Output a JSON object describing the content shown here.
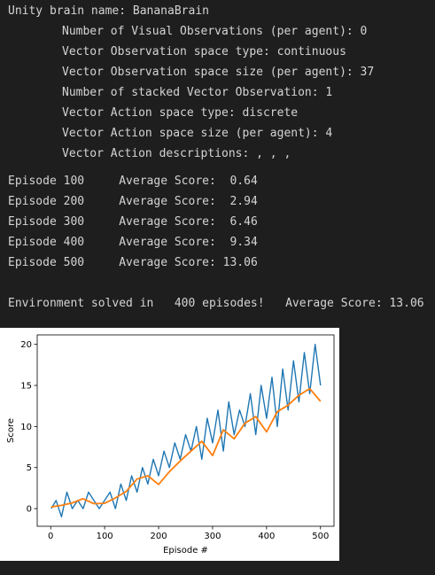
{
  "output": {
    "brain_lines": [
      "Unity brain name: BananaBrain",
      "Number of Visual Observations (per agent): 0",
      "Vector Observation space type: continuous",
      "Vector Observation space size (per agent): 37",
      "Number of stacked Vector Observation: 1",
      "Vector Action space type: discrete",
      "Vector Action space size (per agent): 4",
      "Vector Action descriptions: , , ,"
    ],
    "episode_lines": [
      "Episode 100\tAverage Score:  0.64",
      "Episode 200\tAverage Score:  2.94",
      "Episode 300\tAverage Score:  6.46",
      "Episode 400\tAverage Score:  9.34",
      "Episode 500\tAverage Score: 13.06"
    ],
    "solved_line": "Environment solved in   400 episodes!\tAverage Score: 13.06"
  },
  "chart_data": {
    "type": "line",
    "xlabel": "Episode #",
    "ylabel": "Score",
    "xlim": [
      -25,
      525
    ],
    "ylim": [
      -2.15,
      21.15
    ],
    "xticks": [
      0,
      100,
      200,
      300,
      400,
      500
    ],
    "yticks": [
      0,
      5,
      10,
      15,
      20
    ],
    "grid": false,
    "legend": "none",
    "series": [
      {
        "color": "#1f77b4",
        "x": [
          1,
          10,
          20,
          30,
          40,
          50,
          60,
          70,
          80,
          90,
          100,
          110,
          120,
          130,
          140,
          150,
          160,
          170,
          180,
          190,
          200,
          210,
          220,
          230,
          240,
          250,
          260,
          270,
          280,
          290,
          300,
          310,
          320,
          330,
          340,
          350,
          360,
          370,
          380,
          390,
          400,
          410,
          420,
          430,
          440,
          450,
          460,
          470,
          480,
          490,
          500
        ],
        "values": [
          0,
          1,
          -1,
          2,
          0,
          1,
          0,
          2,
          1,
          0,
          1,
          2,
          0,
          3,
          1,
          4,
          2,
          5,
          3,
          6,
          4,
          7,
          5,
          8,
          6,
          9,
          7,
          10,
          6,
          11,
          8,
          12,
          7,
          13,
          9,
          12,
          10,
          14,
          9,
          15,
          11,
          16,
          10,
          17,
          12,
          18,
          13,
          19,
          14,
          20,
          15
        ]
      },
      {
        "color": "#ff7f0e",
        "x": [
          1,
          20,
          40,
          60,
          80,
          100,
          120,
          140,
          160,
          180,
          200,
          220,
          240,
          260,
          280,
          300,
          320,
          340,
          360,
          380,
          400,
          420,
          440,
          460,
          480,
          500
        ],
        "values": [
          0.2,
          0.4,
          0.7,
          1.2,
          0.6,
          0.64,
          1.3,
          2.1,
          3.6,
          4.0,
          2.94,
          4.5,
          5.8,
          7.0,
          8.2,
          6.46,
          9.6,
          8.5,
          10.4,
          11.2,
          9.34,
          11.8,
          12.6,
          13.8,
          14.6,
          13.06
        ]
      }
    ]
  }
}
